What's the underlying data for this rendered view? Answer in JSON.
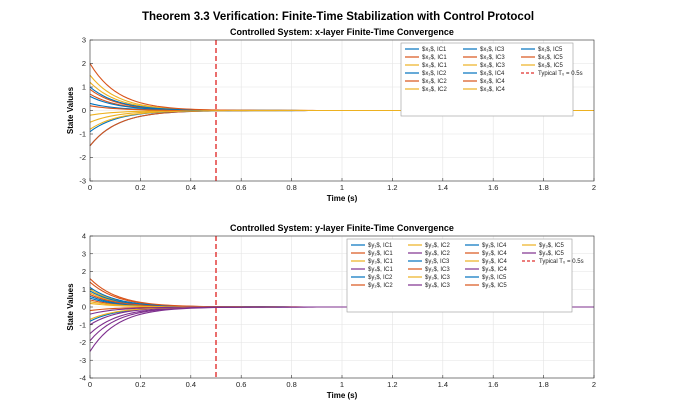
{
  "figure_title": "Theorem 3.3 Verification: Finite-Time Stabilization with Control Protocol",
  "chart_data": [
    {
      "type": "line",
      "title": "Controlled System: x-layer Finite-Time Convergence",
      "xlabel": "Time (s)",
      "ylabel": "State Values",
      "xlim": [
        0,
        2
      ],
      "ylim": [
        -3,
        3
      ],
      "xticks": [
        0,
        0.2,
        0.4,
        0.6,
        0.8,
        1,
        1.2,
        1.4,
        1.6,
        1.8,
        2
      ],
      "xtick_labels": [
        "0",
        "0.2",
        "0.4",
        "0.6",
        "0.8",
        "1",
        "1.2",
        "1.4",
        "1.6",
        "1.8",
        "2"
      ],
      "yticks": [
        -3,
        -2,
        -1,
        0,
        1,
        2,
        3
      ],
      "ytick_labels": [
        "-3",
        "-2",
        "-1",
        "0",
        "1",
        "2",
        "3"
      ],
      "grid": true,
      "legend_position": "top-right",
      "decay_rate": 9,
      "marker": {
        "x": 0.5,
        "label": "Typical T₀ = 0.5s",
        "color": "#e0312f"
      },
      "series": [
        {
          "name": "$x₁$, IC1",
          "x0": 0.3,
          "color": "#0072BD"
        },
        {
          "name": "$x₂$, IC1",
          "x0": 0.9,
          "color": "#D95319"
        },
        {
          "name": "$x₃$, IC1",
          "x0": -0.2,
          "color": "#EDB120"
        },
        {
          "name": "$x₁$, IC2",
          "x0": -1.5,
          "color": "#0072BD"
        },
        {
          "name": "$x₂$, IC2",
          "x0": 0.7,
          "color": "#D95319"
        },
        {
          "name": "$x₃$, IC2",
          "x0": -0.5,
          "color": "#EDB120"
        },
        {
          "name": "$x₁$, IC3",
          "x0": 0.6,
          "color": "#0072BD"
        },
        {
          "name": "$x₂$, IC3",
          "x0": -1.5,
          "color": "#D95319"
        },
        {
          "name": "$x₃$, IC3",
          "x0": 1.2,
          "color": "#EDB120"
        },
        {
          "name": "$x₁$, IC4",
          "x0": -0.9,
          "color": "#0072BD"
        },
        {
          "name": "$x₂$, IC4",
          "x0": 0.2,
          "color": "#D95319"
        },
        {
          "name": "$x₃$, IC4",
          "x0": 1.5,
          "color": "#EDB120"
        },
        {
          "name": "$x₁$, IC5",
          "x0": 1.0,
          "color": "#0072BD"
        },
        {
          "name": "$x₂$, IC5",
          "x0": 2.0,
          "color": "#D95319"
        },
        {
          "name": "$x₃$, IC5",
          "x0": -0.8,
          "color": "#EDB120"
        }
      ]
    },
    {
      "type": "line",
      "title": "Controlled System: y-layer Finite-Time Convergence",
      "xlabel": "Time (s)",
      "ylabel": "State Values",
      "xlim": [
        0,
        2
      ],
      "ylim": [
        -4,
        4
      ],
      "xticks": [
        0,
        0.2,
        0.4,
        0.6,
        0.8,
        1,
        1.2,
        1.4,
        1.6,
        1.8,
        2
      ],
      "xtick_labels": [
        "0",
        "0.2",
        "0.4",
        "0.6",
        "0.8",
        "1",
        "1.2",
        "1.4",
        "1.6",
        "1.8",
        "2"
      ],
      "yticks": [
        -4,
        -3,
        -2,
        -1,
        0,
        1,
        2,
        3,
        4
      ],
      "ytick_labels": [
        "-4",
        "-3",
        "-2",
        "-1",
        "0",
        "1",
        "2",
        "3",
        "4"
      ],
      "grid": true,
      "legend_position": "top-right",
      "decay_rate": 9,
      "marker": {
        "x": 0.5,
        "label": "Typical T₀ = 0.5s",
        "color": "#e0312f"
      },
      "series": [
        {
          "name": "$y₁$, IC1",
          "x0": 0.6,
          "color": "#0072BD"
        },
        {
          "name": "$y₂$, IC1",
          "x0": 1.4,
          "color": "#D95319"
        },
        {
          "name": "$y₃$, IC1",
          "x0": 0.8,
          "color": "#EDB120"
        },
        {
          "name": "$y₄$, IC1",
          "x0": -1.9,
          "color": "#7E2F8E"
        },
        {
          "name": "$y₁$, IC2",
          "x0": -0.8,
          "color": "#0072BD"
        },
        {
          "name": "$y₂$, IC2",
          "x0": 0.4,
          "color": "#D95319"
        },
        {
          "name": "$y₃$, IC2",
          "x0": 1.0,
          "color": "#EDB120"
        },
        {
          "name": "$y₄$, IC2",
          "x0": -1.0,
          "color": "#7E2F8E"
        },
        {
          "name": "$y₁$, IC3",
          "x0": 0.5,
          "color": "#0072BD"
        },
        {
          "name": "$y₂$, IC3",
          "x0": -0.2,
          "color": "#D95319"
        },
        {
          "name": "$y₃$, IC3",
          "x0": 0.3,
          "color": "#EDB120"
        },
        {
          "name": "$y₄$, IC3",
          "x0": -1.5,
          "color": "#7E2F8E"
        },
        {
          "name": "$y₁$, IC4",
          "x0": 0.9,
          "color": "#0072BD"
        },
        {
          "name": "$y₂$, IC4",
          "x0": 0.7,
          "color": "#D95319"
        },
        {
          "name": "$y₃$, IC4",
          "x0": -0.7,
          "color": "#EDB120"
        },
        {
          "name": "$y₄$, IC4",
          "x0": -2.5,
          "color": "#7E2F8E"
        },
        {
          "name": "$y₁$, IC5",
          "x0": 1.1,
          "color": "#0072BD"
        },
        {
          "name": "$y₂$, IC5",
          "x0": 1.6,
          "color": "#D95319"
        },
        {
          "name": "$y₃$, IC5",
          "x0": 0.2,
          "color": "#EDB120"
        },
        {
          "name": "$y₄$, IC5",
          "x0": -0.4,
          "color": "#7E2F8E"
        }
      ]
    }
  ]
}
